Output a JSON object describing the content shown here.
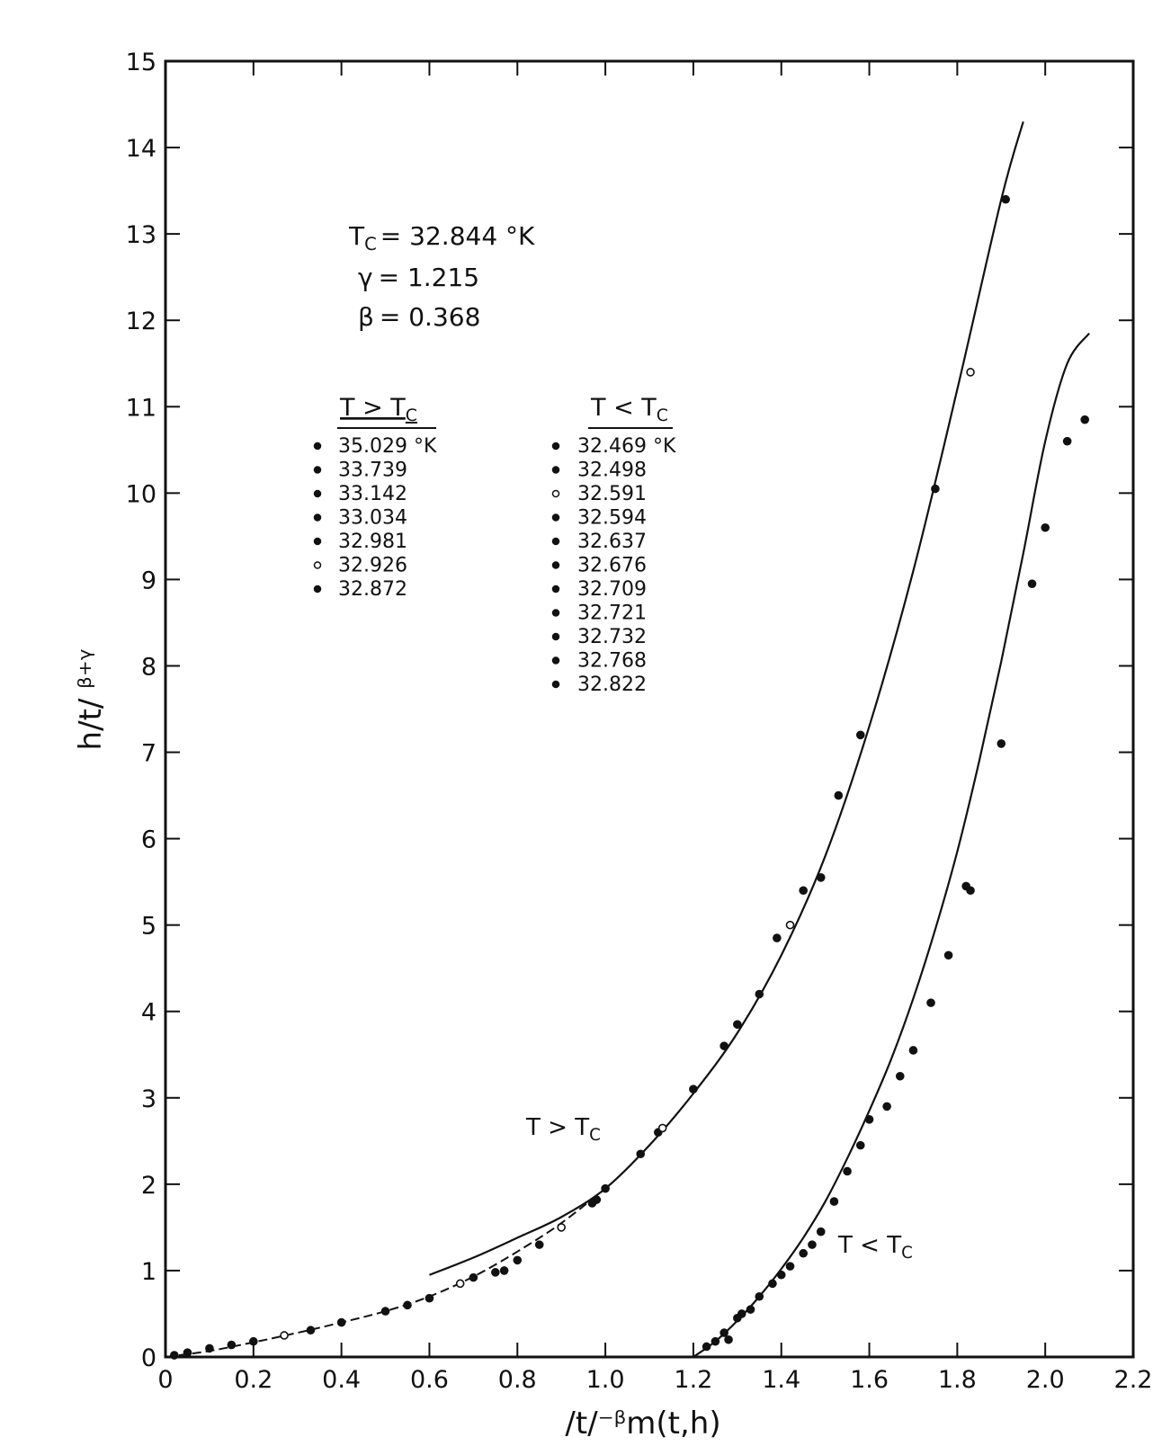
{
  "chart_data": {
    "type": "scatter",
    "xlabel": "/t/⁻ᵝm(t,h)",
    "ylabel": "h/t/ ᵝ⁺ᵞ",
    "xlim": [
      0,
      2.2
    ],
    "ylim": [
      0,
      15
    ],
    "grid": false,
    "x_ticks": [
      "0",
      "0.2",
      "0.4",
      "0.6",
      "0.8",
      "1.0",
      "1.2",
      "1.4",
      "1.6",
      "1.8",
      "2.0",
      "2.2"
    ],
    "y_ticks": [
      "0",
      "1",
      "2",
      "3",
      "4",
      "5",
      "6",
      "7",
      "8",
      "9",
      "10",
      "11",
      "12",
      "13",
      "14",
      "15"
    ],
    "parameters": [
      {
        "symbol": "T",
        "sub": "C",
        "value": "= 32.844 °K"
      },
      {
        "symbol": "γ",
        "sub": "",
        "value": "= 1.215"
      },
      {
        "symbol": "β",
        "sub": "",
        "value": "= 0.368"
      }
    ],
    "legend_above": {
      "header": "T > T",
      "header_sub": "C",
      "entries": [
        "35.029 °K",
        "33.739",
        "33.142",
        "33.034",
        "32.981",
        "32.926",
        "32.872"
      ]
    },
    "legend_below": {
      "header": "T < T",
      "header_sub": "C",
      "entries": [
        "32.469 °K",
        "32.498",
        "32.591",
        "32.594",
        "32.637",
        "32.676",
        "32.709",
        "32.721",
        "32.732",
        "32.768",
        "32.822"
      ]
    },
    "curve_labels": [
      {
        "text": "T > T",
        "sub": "C"
      },
      {
        "text": "T < T",
        "sub": "C"
      }
    ],
    "series": [
      {
        "name": "T > Tc",
        "curve": [
          [
            0.6,
            0.95
          ],
          [
            0.7,
            1.15
          ],
          [
            0.8,
            1.38
          ],
          [
            0.9,
            1.62
          ],
          [
            1.0,
            1.95
          ],
          [
            1.1,
            2.45
          ],
          [
            1.2,
            3.05
          ],
          [
            1.3,
            3.75
          ],
          [
            1.4,
            4.65
          ],
          [
            1.5,
            5.8
          ],
          [
            1.6,
            7.3
          ],
          [
            1.7,
            9.1
          ],
          [
            1.8,
            11.2
          ],
          [
            1.9,
            13.4
          ],
          [
            1.95,
            14.3
          ]
        ],
        "lower_curve": [
          [
            0.0,
            0.0
          ],
          [
            0.1,
            0.07
          ],
          [
            0.2,
            0.17
          ],
          [
            0.3,
            0.28
          ],
          [
            0.4,
            0.4
          ],
          [
            0.5,
            0.53
          ],
          [
            0.6,
            0.7
          ],
          [
            0.7,
            0.93
          ],
          [
            0.8,
            1.22
          ],
          [
            0.9,
            1.55
          ],
          [
            1.0,
            1.95
          ]
        ],
        "points": [
          [
            0.02,
            0.02
          ],
          [
            0.05,
            0.05
          ],
          [
            0.1,
            0.1
          ],
          [
            0.15,
            0.14
          ],
          [
            0.2,
            0.18
          ],
          [
            0.27,
            0.25
          ],
          [
            0.33,
            0.31
          ],
          [
            0.4,
            0.4
          ],
          [
            0.5,
            0.53
          ],
          [
            0.55,
            0.6
          ],
          [
            0.6,
            0.68
          ],
          [
            0.67,
            0.85
          ],
          [
            0.7,
            0.92
          ],
          [
            0.75,
            0.98
          ],
          [
            0.77,
            1.0
          ],
          [
            0.8,
            1.12
          ],
          [
            0.85,
            1.3
          ],
          [
            0.9,
            1.5
          ],
          [
            0.97,
            1.78
          ],
          [
            0.98,
            1.82
          ],
          [
            1.0,
            1.95
          ],
          [
            1.08,
            2.35
          ],
          [
            1.12,
            2.6
          ],
          [
            1.13,
            2.65
          ],
          [
            1.2,
            3.1
          ],
          [
            1.27,
            3.6
          ],
          [
            1.3,
            3.85
          ],
          [
            1.35,
            4.2
          ],
          [
            1.39,
            4.85
          ],
          [
            1.42,
            5.0
          ],
          [
            1.45,
            5.4
          ],
          [
            1.49,
            5.55
          ],
          [
            1.53,
            6.5
          ],
          [
            1.58,
            7.2
          ],
          [
            1.75,
            10.05
          ],
          [
            1.83,
            11.4
          ],
          [
            1.91,
            13.4
          ]
        ]
      },
      {
        "name": "T < Tc",
        "curve": [
          [
            1.2,
            0.0
          ],
          [
            1.25,
            0.18
          ],
          [
            1.3,
            0.42
          ],
          [
            1.35,
            0.7
          ],
          [
            1.4,
            1.02
          ],
          [
            1.45,
            1.38
          ],
          [
            1.5,
            1.8
          ],
          [
            1.55,
            2.3
          ],
          [
            1.6,
            2.85
          ],
          [
            1.65,
            3.45
          ],
          [
            1.7,
            4.15
          ],
          [
            1.75,
            4.95
          ],
          [
            1.8,
            5.85
          ],
          [
            1.85,
            6.9
          ],
          [
            1.9,
            8.05
          ],
          [
            1.95,
            9.3
          ],
          [
            2.0,
            10.6
          ],
          [
            2.05,
            11.5
          ],
          [
            2.1,
            11.85
          ]
        ],
        "points": [
          [
            1.23,
            0.12
          ],
          [
            1.25,
            0.18
          ],
          [
            1.27,
            0.28
          ],
          [
            1.28,
            0.2
          ],
          [
            1.3,
            0.45
          ],
          [
            1.31,
            0.5
          ],
          [
            1.33,
            0.55
          ],
          [
            1.35,
            0.7
          ],
          [
            1.38,
            0.85
          ],
          [
            1.4,
            0.95
          ],
          [
            1.42,
            1.05
          ],
          [
            1.45,
            1.2
          ],
          [
            1.47,
            1.3
          ],
          [
            1.49,
            1.45
          ],
          [
            1.52,
            1.8
          ],
          [
            1.55,
            2.15
          ],
          [
            1.58,
            2.45
          ],
          [
            1.6,
            2.75
          ],
          [
            1.64,
            2.9
          ],
          [
            1.67,
            3.25
          ],
          [
            1.7,
            3.55
          ],
          [
            1.74,
            4.1
          ],
          [
            1.78,
            4.65
          ],
          [
            1.82,
            5.45
          ],
          [
            1.83,
            5.4
          ],
          [
            1.9,
            7.1
          ],
          [
            1.97,
            8.95
          ],
          [
            2.0,
            9.6
          ],
          [
            2.05,
            10.6
          ],
          [
            2.09,
            10.85
          ]
        ]
      }
    ]
  }
}
